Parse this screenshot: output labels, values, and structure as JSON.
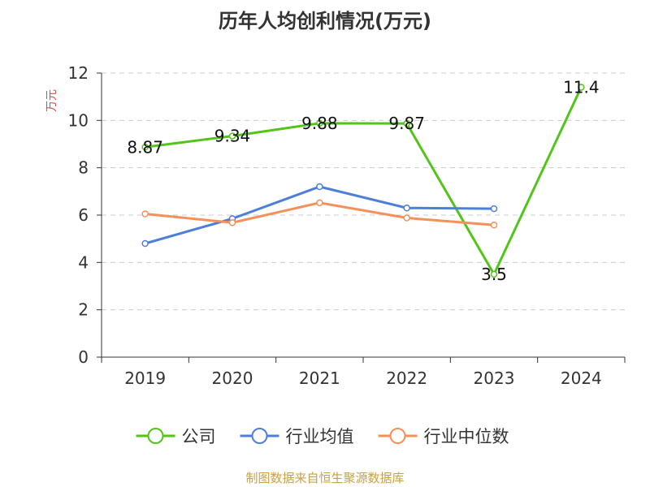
{
  "chart_data": {
    "type": "line",
    "title": "历年人均创利情况(万元)",
    "ylabel": "万元",
    "xlabel": "",
    "categories": [
      "2019",
      "2020",
      "2021",
      "2022",
      "2023",
      "2024"
    ],
    "yticks": [
      "0",
      "2",
      "4",
      "6",
      "8",
      "10",
      "12"
    ],
    "ylim": [
      0,
      12
    ],
    "grid": true,
    "legend_position": "bottom",
    "series": [
      {
        "name": "公司",
        "color": "#52c41a",
        "values": [
          8.87,
          9.34,
          9.88,
          9.87,
          3.5,
          11.4
        ],
        "labels": [
          "8.87",
          "9.34",
          "9.88",
          "9.87",
          "3.5",
          "11.4"
        ]
      },
      {
        "name": "行业均值",
        "color": "#4e7fd8",
        "values": [
          4.8,
          5.85,
          7.2,
          6.3,
          6.27,
          null
        ]
      },
      {
        "name": "行业中位数",
        "color": "#f5905a",
        "values": [
          6.05,
          5.68,
          6.52,
          5.88,
          5.58,
          null
        ]
      }
    ]
  },
  "footer": "制图数据来自恒生聚源数据库"
}
